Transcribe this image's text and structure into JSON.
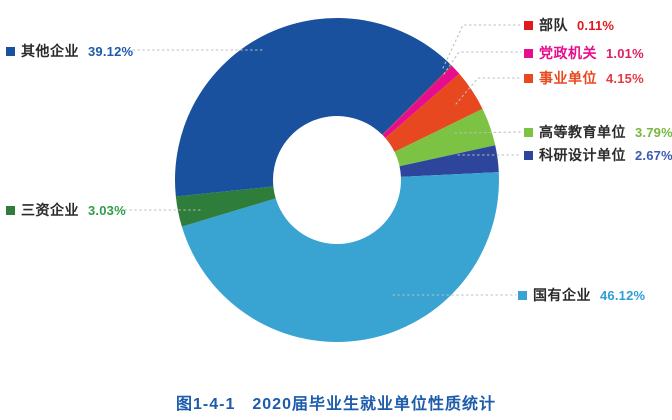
{
  "figure": {
    "caption": "图1-4-1　2020届毕业生就业单位性质统计",
    "caption_color": "#1d5bab"
  },
  "chart_data": {
    "type": "pie",
    "subtype": "donut",
    "title": "图1-4-1　2020届毕业生就业单位性质统计",
    "legend_position": "around-labels-with-leader-lines",
    "start_angle_deg_clockwise_from_north": 45,
    "inner_radius_ratio": 0.395,
    "categories": [
      "部队",
      "党政机关",
      "事业单位",
      "高等教育单位",
      "科研设计单位",
      "国有企业",
      "三资企业",
      "其他企业"
    ],
    "values": [
      0.11,
      1.01,
      4.15,
      3.79,
      2.67,
      46.12,
      3.03,
      39.12
    ],
    "segments": [
      {
        "key": "budui",
        "label": "部队",
        "value": 0.11,
        "display": "0.11%",
        "color": "#e1191f",
        "label_color": "#2b2b2b",
        "value_color": "#e1191f"
      },
      {
        "key": "dangzheng",
        "label": "党政机关",
        "value": 1.01,
        "display": "1.01%",
        "color": "#e60e8e",
        "label_color": "#e60e8e",
        "value_color": "#dc1f63"
      },
      {
        "key": "shiye",
        "label": "事业单位",
        "value": 4.15,
        "display": "4.15%",
        "color": "#e8481f",
        "label_color": "#e8481f",
        "value_color": "#e43a44"
      },
      {
        "key": "gaodeng",
        "label": "高等教育单位",
        "value": 3.79,
        "display": "3.79%",
        "color": "#7cc243",
        "label_color": "#2b2b2b",
        "value_color": "#74b83e"
      },
      {
        "key": "keyan",
        "label": "科研设计单位",
        "value": 2.67,
        "display": "2.67%",
        "color": "#2e459c",
        "label_color": "#2b2b2b",
        "value_color": "#3a5ab2"
      },
      {
        "key": "guoyou",
        "label": "国有企业",
        "value": 46.12,
        "display": "46.12%",
        "color": "#39a3d2",
        "label_color": "#2b2b2b",
        "value_color": "#2d9fd4"
      },
      {
        "key": "sanzi",
        "label": "三资企业",
        "value": 3.03,
        "display": "3.03%",
        "color": "#2e7d3b",
        "label_color": "#2b2b2b",
        "value_color": "#2f9e4a"
      },
      {
        "key": "qita",
        "label": "其他企业",
        "value": 39.12,
        "display": "39.12%",
        "color": "#1a519e",
        "label_color": "#2b2b2b",
        "value_color": "#1d5bab"
      }
    ]
  }
}
